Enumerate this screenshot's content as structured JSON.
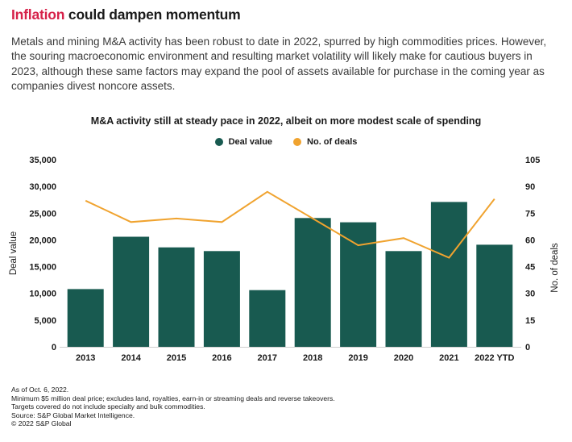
{
  "page": {
    "title_highlight": "Inflation",
    "title_rest": " could dampen momentum",
    "intro": "Metals and mining M&A activity has been robust to date in 2022, spurred by high commodities prices. However, the souring macroeconomic environment and resulting market volatility will likely make for cautious buyers in 2023, although these same factors may expand the pool of assets available for purchase in the coming year as companies divest noncore assets."
  },
  "chart_data": {
    "type": "bar",
    "subtype": "bar-line-combo",
    "title": "M&A activity still at steady pace in 2022, albeit on more modest scale of spending",
    "categories": [
      "2013",
      "2014",
      "2015",
      "2016",
      "2017",
      "2018",
      "2019",
      "2020",
      "2021",
      "2022 YTD"
    ],
    "series": [
      {
        "name": "Deal value",
        "type": "bar",
        "axis": "left",
        "color": "#185a50",
        "values": [
          10800,
          20600,
          18600,
          17900,
          10600,
          24100,
          23300,
          17900,
          27100,
          19100
        ]
      },
      {
        "name": "No. of deals",
        "type": "line",
        "axis": "right",
        "color": "#f0a32f",
        "values": [
          82,
          70,
          72,
          70,
          87,
          72,
          57,
          61,
          50,
          83
        ]
      }
    ],
    "left_axis": {
      "label": "Deal value",
      "min": 0,
      "max": 35000,
      "tick_step": 5000,
      "tick_labels": [
        "0",
        "5,000",
        "10,000",
        "15,000",
        "20,000",
        "25,000",
        "30,000",
        "35,000"
      ]
    },
    "right_axis": {
      "label": "No. of deals",
      "min": 0,
      "max": 105,
      "tick_step": 15,
      "tick_labels": [
        "0",
        "15",
        "30",
        "45",
        "60",
        "75",
        "90",
        "105"
      ]
    },
    "legend_position": "top-center",
    "grid": false
  },
  "footnotes": [
    "As of Oct. 6, 2022.",
    "Minimum $5 million deal price; excludes land, royalties, earn-in or streaming deals and reverse takeovers.",
    "Targets covered do not include specialty and bulk commodities.",
    "Source: S&P Global Market Intelligence.",
    "© 2022 S&P Global"
  ]
}
